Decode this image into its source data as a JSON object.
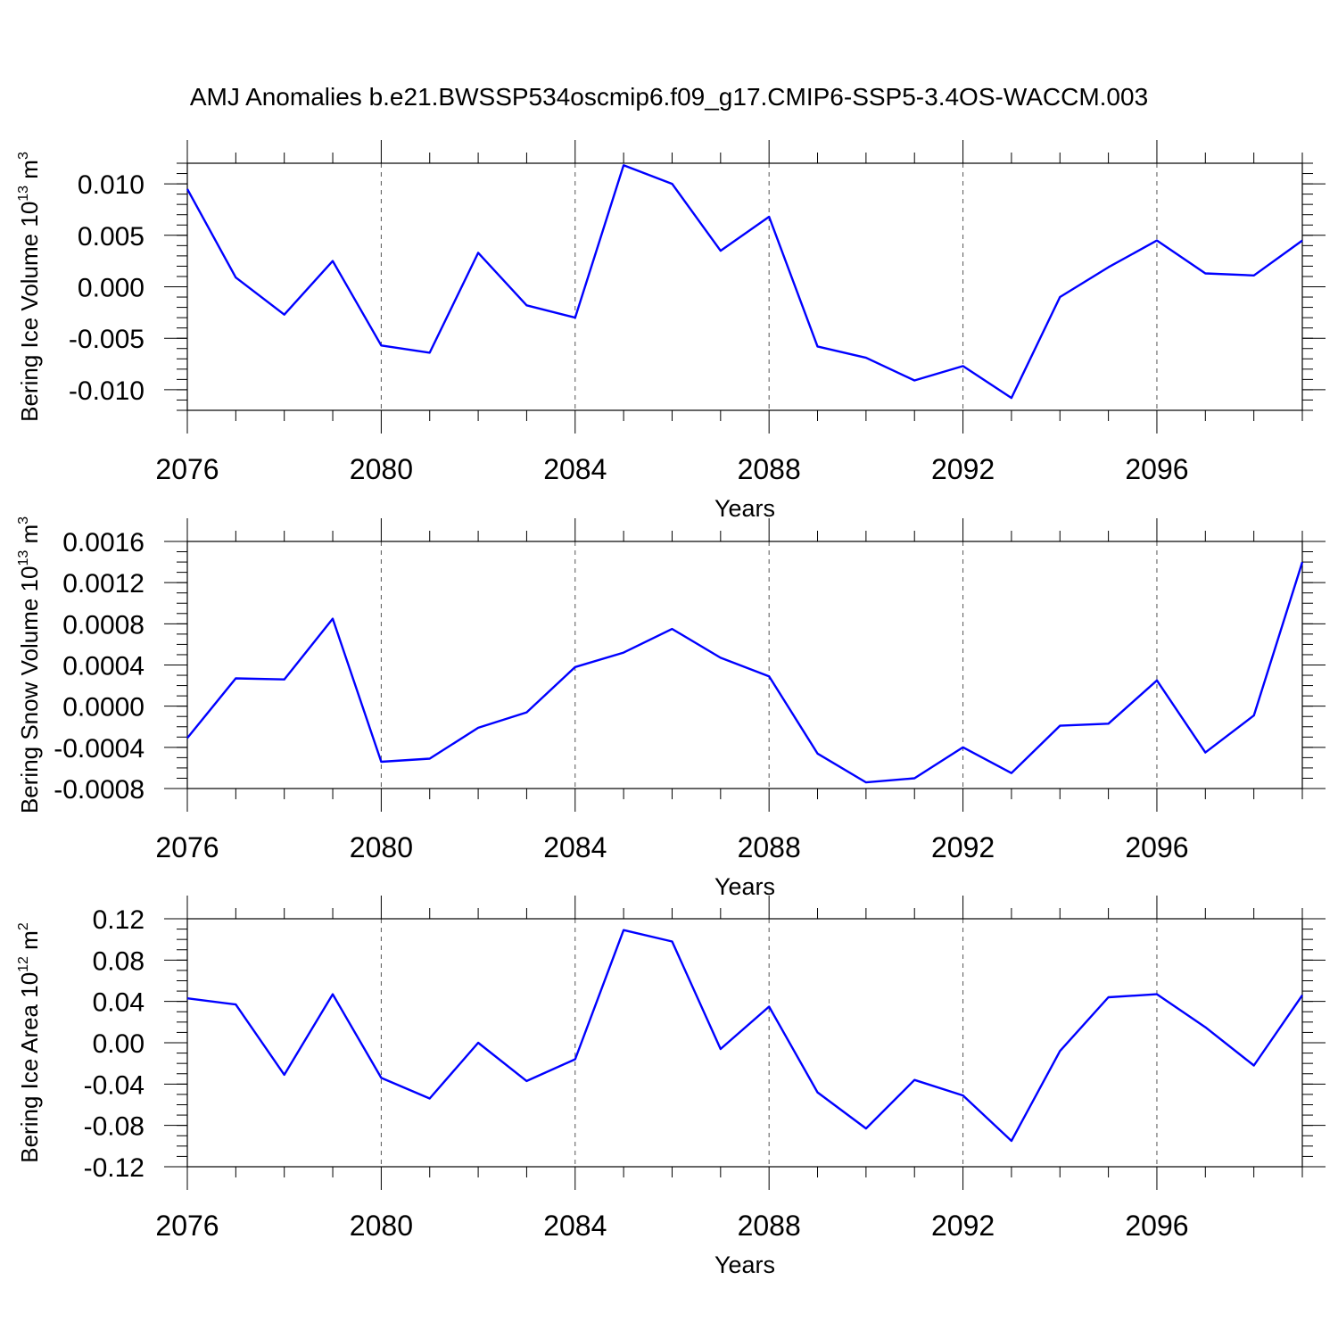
{
  "title": "AMJ Anomalies b.e21.BWSSP534oscmip6.f09_g17.CMIP6-SSP5-3.4OS-WACCM.003",
  "line_color": "#0000ff",
  "chart_data": [
    {
      "type": "line",
      "name": "ice-volume",
      "ylabel": "Bering Ice Volume 10",
      "ylabel_exp": "13",
      "ylabel_unit": " m",
      "ylabel_unit_exp": "3",
      "xlabel": "Years",
      "x": [
        2076,
        2077,
        2078,
        2079,
        2080,
        2081,
        2082,
        2083,
        2084,
        2085,
        2086,
        2087,
        2088,
        2089,
        2090,
        2091,
        2092,
        2093,
        2094,
        2095,
        2096,
        2097,
        2098,
        2099
      ],
      "values": [
        0.0095,
        0.0009,
        -0.0027,
        0.0025,
        -0.0057,
        -0.0064,
        0.0033,
        -0.0018,
        -0.003,
        0.0118,
        0.01,
        0.0035,
        0.0068,
        -0.0058,
        -0.0069,
        -0.0091,
        -0.0077,
        -0.0108,
        -0.001,
        0.0019,
        0.0045,
        0.0013,
        0.0011,
        0.0045
      ],
      "xlim": [
        2076,
        2099
      ],
      "ylim": [
        -0.012,
        0.012
      ],
      "yticks": [
        -0.01,
        -0.005,
        0.0,
        0.005,
        0.01
      ],
      "ytick_labels": [
        "-0.010",
        "-0.005",
        "0.000",
        "0.005",
        "0.010"
      ],
      "yminor": 0.001,
      "xticks": [
        2076,
        2080,
        2084,
        2088,
        2092,
        2096
      ],
      "xtick_labels": [
        "2076",
        "2080",
        "2084",
        "2088",
        "2092",
        "2096"
      ]
    },
    {
      "type": "line",
      "name": "snow-volume",
      "ylabel": "Bering Snow Volume 10",
      "ylabel_exp": "13",
      "ylabel_unit": " m",
      "ylabel_unit_exp": "3",
      "xlabel": "Years",
      "x": [
        2076,
        2077,
        2078,
        2079,
        2080,
        2081,
        2082,
        2083,
        2084,
        2085,
        2086,
        2087,
        2088,
        2089,
        2090,
        2091,
        2092,
        2093,
        2094,
        2095,
        2096,
        2097,
        2098,
        2099
      ],
      "values": [
        -0.00031,
        0.00027,
        0.00026,
        0.00085,
        -0.00054,
        -0.00051,
        -0.00021,
        -6e-05,
        0.00038,
        0.00052,
        0.00075,
        0.00047,
        0.00029,
        -0.00046,
        -0.00074,
        -0.0007,
        -0.0004,
        -0.00065,
        -0.00019,
        -0.00017,
        0.00025,
        -0.00045,
        -9e-05,
        0.0014
      ],
      "xlim": [
        2076,
        2099
      ],
      "ylim": [
        -0.0008,
        0.0016
      ],
      "yticks": [
        -0.0008,
        -0.0004,
        0.0,
        0.0004,
        0.0008,
        0.0012,
        0.0016
      ],
      "ytick_labels": [
        "-0.0008",
        "-0.0004",
        "0.0000",
        "0.0004",
        "0.0008",
        "0.0012",
        "0.0016"
      ],
      "yminor": 0.0001,
      "xticks": [
        2076,
        2080,
        2084,
        2088,
        2092,
        2096
      ],
      "xtick_labels": [
        "2076",
        "2080",
        "2084",
        "2088",
        "2092",
        "2096"
      ]
    },
    {
      "type": "line",
      "name": "ice-area",
      "ylabel": "Bering Ice Area 10",
      "ylabel_exp": "12",
      "ylabel_unit": " m",
      "ylabel_unit_exp": "2",
      "xlabel": "Years",
      "x": [
        2076,
        2077,
        2078,
        2079,
        2080,
        2081,
        2082,
        2083,
        2084,
        2085,
        2086,
        2087,
        2088,
        2089,
        2090,
        2091,
        2092,
        2093,
        2094,
        2095,
        2096,
        2097,
        2098,
        2099
      ],
      "values": [
        0.043,
        0.037,
        -0.031,
        0.047,
        -0.034,
        -0.054,
        0.0,
        -0.037,
        -0.016,
        0.109,
        0.098,
        -0.006,
        0.035,
        -0.048,
        -0.083,
        -0.036,
        -0.051,
        -0.095,
        -0.008,
        0.044,
        0.047,
        0.015,
        -0.022,
        0.046
      ],
      "xlim": [
        2076,
        2099
      ],
      "ylim": [
        -0.12,
        0.12
      ],
      "yticks": [
        -0.12,
        -0.08,
        -0.04,
        0.0,
        0.04,
        0.08,
        0.12
      ],
      "ytick_labels": [
        "-0.12",
        "-0.08",
        "-0.04",
        "0.00",
        "0.04",
        "0.08",
        "0.12"
      ],
      "yminor": 0.01,
      "xticks": [
        2076,
        2080,
        2084,
        2088,
        2092,
        2096
      ],
      "xtick_labels": [
        "2076",
        "2080",
        "2084",
        "2088",
        "2092",
        "2096"
      ]
    }
  ]
}
